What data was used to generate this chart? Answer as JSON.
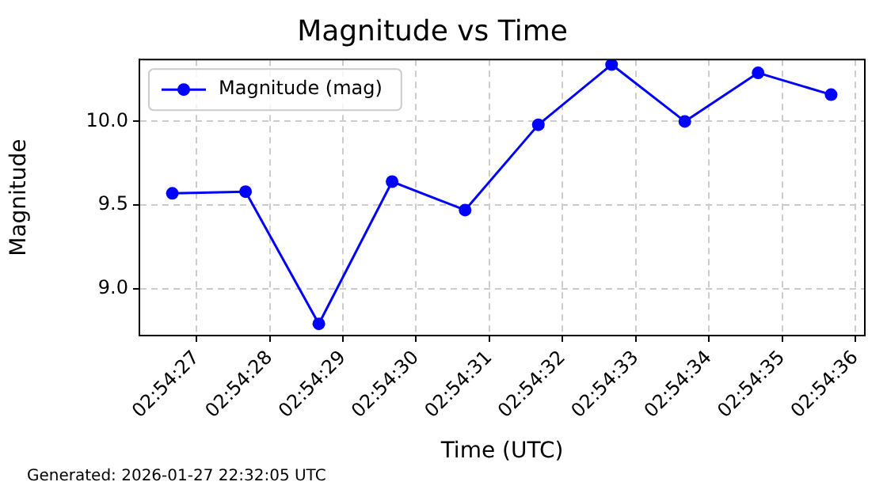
{
  "chart_data": {
    "type": "line",
    "title": "Magnitude vs Time",
    "xlabel": "Time (UTC)",
    "ylabel": "Magnitude",
    "x": [
      2.907408,
      2.907686,
      2.907964,
      2.908242,
      2.908519,
      2.908797,
      2.909075,
      2.909353,
      2.909631,
      2.909908
    ],
    "series": [
      {
        "name": "Magnitude (mag)",
        "color": "#0000ff",
        "values": [
          9.57,
          9.58,
          8.79,
          9.64,
          9.47,
          9.98,
          10.34,
          10.0,
          10.29,
          10.16
        ]
      }
    ],
    "xlim": [
      2.907283,
      2.910036
    ],
    "xticks": [
      {
        "value": 2.9075,
        "label": "02:54:27"
      },
      {
        "value": 2.907778,
        "label": "02:54:28"
      },
      {
        "value": 2.908056,
        "label": "02:54:29"
      },
      {
        "value": 2.908333,
        "label": "02:54:30"
      },
      {
        "value": 2.908611,
        "label": "02:54:31"
      },
      {
        "value": 2.908889,
        "label": "02:54:32"
      },
      {
        "value": 2.909167,
        "label": "02:54:33"
      },
      {
        "value": 2.909444,
        "label": "02:54:34"
      },
      {
        "value": 2.909722,
        "label": "02:54:35"
      },
      {
        "value": 2.91,
        "label": "02:54:36"
      }
    ],
    "ylim": [
      8.72,
      10.37
    ],
    "yticks": [
      {
        "value": 9.0,
        "label": "9.0"
      },
      {
        "value": 9.5,
        "label": "9.5"
      },
      {
        "value": 10.0,
        "label": "10.0"
      }
    ],
    "grid": true,
    "legend": "top left",
    "marker": "circle",
    "line_style": "solid",
    "annotations": [
      "Generated: 2026-01-27 22:32:05 UTC"
    ]
  }
}
